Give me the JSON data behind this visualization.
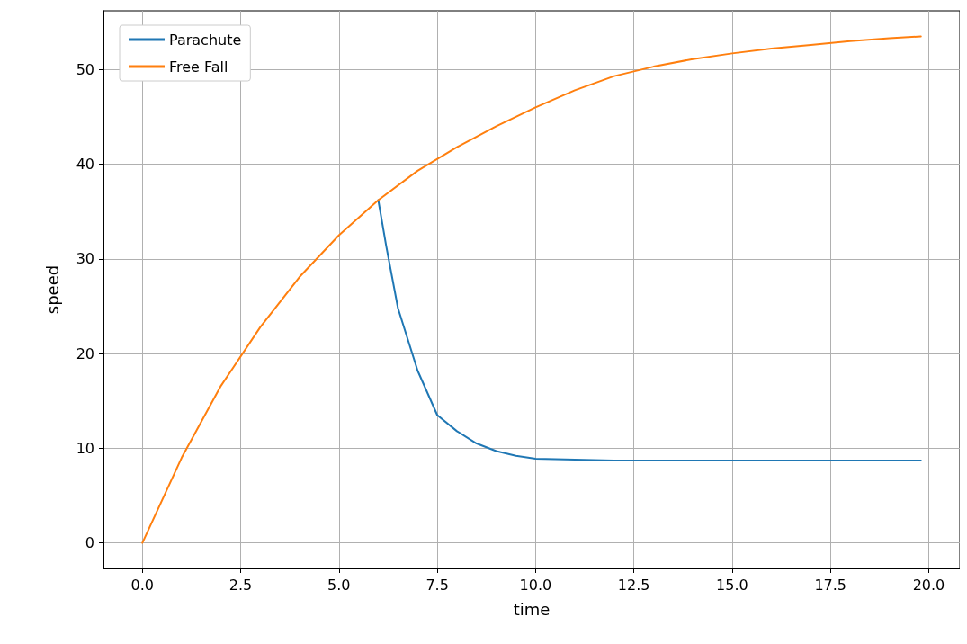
{
  "chart_data": {
    "type": "line",
    "xlabel": "time",
    "ylabel": "speed",
    "xlim": [
      -0.99,
      20.79
    ],
    "ylim": [
      -2.7,
      56.2
    ],
    "xticks": [
      {
        "value": 0,
        "label": "0.0"
      },
      {
        "value": 2.5,
        "label": "2.5"
      },
      {
        "value": 5,
        "label": "5.0"
      },
      {
        "value": 7.5,
        "label": "7.5"
      },
      {
        "value": 10,
        "label": "10.0"
      },
      {
        "value": 12.5,
        "label": "12.5"
      },
      {
        "value": 15,
        "label": "15.0"
      },
      {
        "value": 17.5,
        "label": "17.5"
      },
      {
        "value": 20,
        "label": "20.0"
      }
    ],
    "yticks": [
      0,
      10,
      20,
      30,
      40,
      50
    ],
    "grid": true,
    "legend": "top left",
    "line_style": "solid",
    "marker": "none",
    "series": [
      {
        "name": "Parachute",
        "color": "#1f77b4",
        "x": [
          6,
          6.2,
          6.5,
          7,
          7.5,
          8,
          8.5,
          9,
          9.5,
          10,
          11,
          12,
          14,
          16,
          18,
          19.8
        ],
        "values": [
          36.2,
          31.4,
          24.8,
          18.2,
          13.5,
          11.8,
          10.5,
          9.7,
          9.2,
          8.9,
          8.8,
          8.7,
          8.7,
          8.7,
          8.7,
          8.7
        ]
      },
      {
        "name": "Free Fall",
        "color": "#ff7f0e",
        "x": [
          0,
          1,
          2,
          3,
          4,
          5,
          6,
          7,
          8,
          9,
          10,
          11,
          12,
          13,
          14,
          15,
          16,
          17,
          18,
          19,
          19.8
        ],
        "values": [
          0,
          9.0,
          16.6,
          22.8,
          28.1,
          32.5,
          36.2,
          39.3,
          41.8,
          44.0,
          46.0,
          47.8,
          49.3,
          50.3,
          51.1,
          51.7,
          52.2,
          52.6,
          53.0,
          53.3,
          53.5
        ]
      }
    ]
  }
}
